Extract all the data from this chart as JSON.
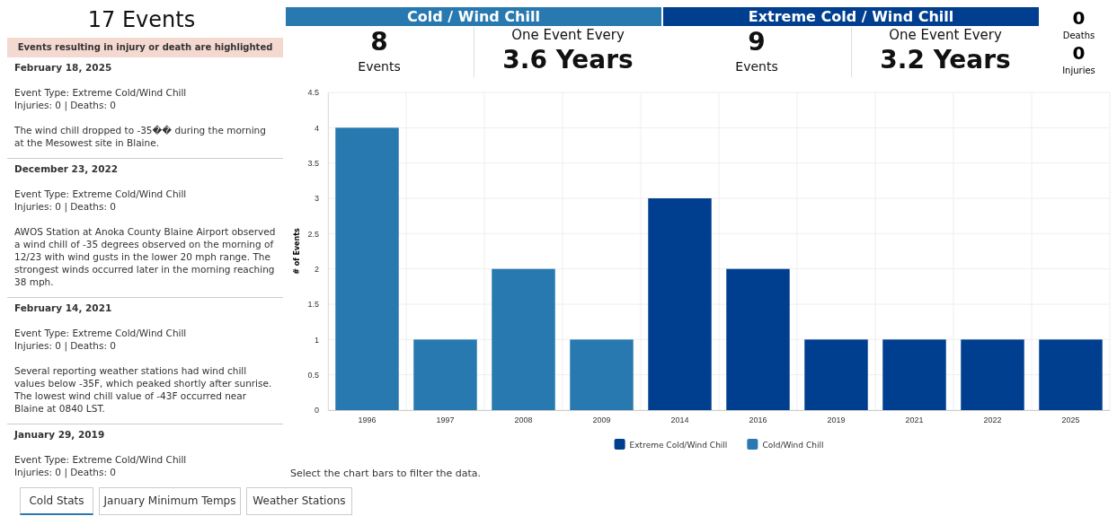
{
  "chart_data": [
    {
      "type": "other",
      "title": "17 Events",
      "annotations": [
        "Events resulting in injury or death are highlighted",
        "February 18, 2025",
        "Event Type: Extreme Cold/Wind Chill",
        "Injuries: 0 | Deaths: 0",
        "The wind chill dropped to -35�� during the morning at the Mesowest site in Blaine.",
        "December 23, 2022",
        "Event Type: Extreme Cold/Wind Chill",
        "Injuries: 0 | Deaths: 0",
        "AWOS Station at Anoka County Blaine Airport observed a wind chill of -35 degrees observed on the morning of 12/23 with wind gusts in the lower 20 mph range. The strongest winds occurred later in the morning reaching 38 mph.",
        "February 14, 2021",
        "Event Type: Extreme Cold/Wind Chill",
        "Injuries: 0 | Deaths: 0",
        "Several reporting weather stations had wind chill values below -35F, which peaked shortly after sunrise. The lowest wind chill value of -43F occurred near Blaine at 0840 LST.",
        "January 29, 2019",
        "Event Type: Extreme Cold/Wind Chill",
        "Injuries: 0 | Deaths: 0",
        "Cold / Wind Chill",
        "8",
        "Events",
        "One Event Every",
        "3.6 Years",
        "Extreme Cold / Wind Chill",
        "9",
        "Events",
        "One Event Every",
        "3.2 Years",
        "0",
        "Deaths",
        "0",
        "Injuries",
        "Cold Stats",
        "January Minimum Temps",
        "Weather Stations"
      ]
    },
    {
      "type": "bar",
      "ylabel": "# of Events",
      "categories": [
        "1996",
        "1997",
        "2008",
        "2009",
        "2014",
        "2016",
        "2019",
        "2021",
        "2022",
        "2025"
      ],
      "series": [
        {
          "name": "Extreme Cold/Wind Chill",
          "color": "#003f8f",
          "values": [
            null,
            null,
            null,
            null,
            3,
            2,
            1,
            1,
            1,
            1
          ]
        },
        {
          "name": "Cold/Wind Chill",
          "color": "#2779b0",
          "values": [
            4,
            1,
            2,
            1,
            null,
            null,
            null,
            null,
            null,
            null
          ]
        }
      ],
      "ylim": [
        0,
        4.5
      ],
      "yticks": [
        0,
        0.5,
        1,
        1.5,
        2,
        2.5,
        3,
        3.5,
        4,
        4.5
      ],
      "grid": true,
      "legend": "bottom",
      "annotations": [
        "Select the chart bars to filter the data."
      ]
    }
  ]
}
